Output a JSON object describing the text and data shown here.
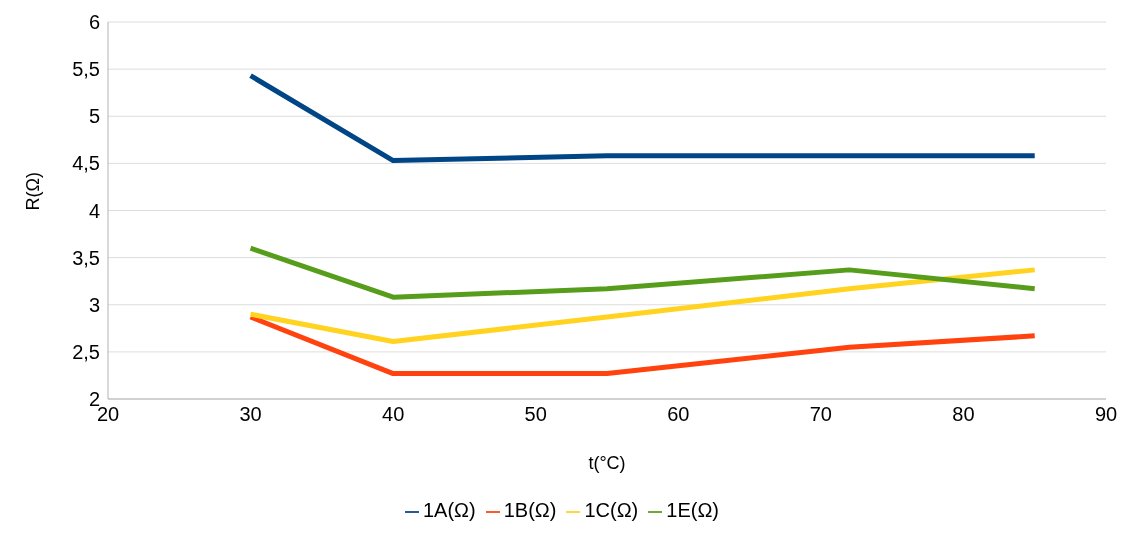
{
  "chart_data": {
    "type": "line",
    "xlabel": "t(°C)",
    "ylabel": "R(Ω)",
    "x": [
      30,
      40,
      55,
      72,
      85
    ],
    "series": [
      {
        "name": "1A(Ω)",
        "color": "#004586",
        "values": [
          5.43,
          4.53,
          4.58,
          4.58,
          4.58
        ]
      },
      {
        "name": "1B(Ω)",
        "color": "#ff420e",
        "values": [
          2.87,
          2.27,
          2.27,
          2.55,
          2.67
        ]
      },
      {
        "name": "1C(Ω)",
        "color": "#ffd320",
        "values": [
          2.9,
          2.61,
          2.87,
          3.17,
          3.37
        ]
      },
      {
        "name": "1E(Ω)",
        "color": "#579d1c",
        "values": [
          3.6,
          3.08,
          3.17,
          3.37,
          3.17
        ]
      }
    ],
    "xlim": [
      20,
      90
    ],
    "xticks": [
      20,
      30,
      40,
      50,
      60,
      70,
      80,
      90
    ],
    "ylim": [
      2,
      6
    ],
    "yticks": [
      2,
      {
        "value": 2.5,
        "label": "2,5"
      },
      3,
      {
        "value": 3.5,
        "label": "3,5"
      },
      4,
      {
        "value": 4.5,
        "label": "4,5"
      },
      5,
      {
        "value": 5.5,
        "label": "5,5"
      },
      6
    ],
    "grid": "y",
    "legend": "bottom",
    "marker": "none",
    "line_style": "solid"
  }
}
